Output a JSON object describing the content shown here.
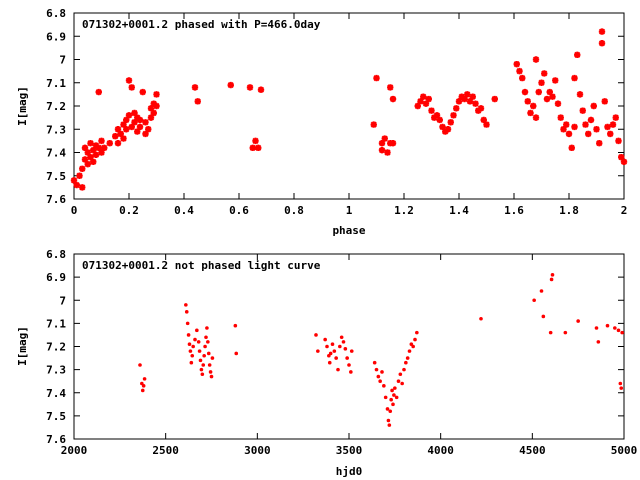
{
  "chart_data": [
    {
      "type": "scatter",
      "title": "071302+0001.2 phased with P=466.0day",
      "xlabel": "phase",
      "ylabel": "I[mag]",
      "xlim": [
        0,
        2
      ],
      "ylim": [
        7.6,
        6.8
      ],
      "y_inverted": true,
      "xticks": [
        0,
        0.2,
        0.4,
        0.6,
        0.8,
        1,
        1.2,
        1.4,
        1.6,
        1.8,
        2
      ],
      "xtick_labels": [
        "0",
        "0.2",
        "0.4",
        "0.6",
        "0.8",
        "1",
        "1.2",
        "1.4",
        "1.6",
        "1.8",
        "2"
      ],
      "yticks": [
        6.8,
        6.9,
        7,
        7.1,
        7.2,
        7.3,
        7.4,
        7.5,
        7.6
      ],
      "ytick_labels": [
        "6.8",
        "6.9",
        "7",
        "7.1",
        "7.2",
        "7.3",
        "7.4",
        "7.5",
        "7.6"
      ],
      "grid": false,
      "legend": "none",
      "marker_color": "#ff0000",
      "points": [
        [
          0.0,
          7.52
        ],
        [
          0.01,
          7.54
        ],
        [
          0.02,
          7.5
        ],
        [
          0.03,
          7.55
        ],
        [
          0.03,
          7.47
        ],
        [
          0.04,
          7.43
        ],
        [
          0.04,
          7.38
        ],
        [
          0.05,
          7.45
        ],
        [
          0.05,
          7.4
        ],
        [
          0.06,
          7.36
        ],
        [
          0.06,
          7.42
        ],
        [
          0.07,
          7.39
        ],
        [
          0.07,
          7.44
        ],
        [
          0.08,
          7.37
        ],
        [
          0.08,
          7.41
        ],
        [
          0.09,
          7.38
        ],
        [
          0.09,
          7.14
        ],
        [
          0.1,
          7.4
        ],
        [
          0.1,
          7.35
        ],
        [
          0.11,
          7.38
        ],
        [
          0.13,
          7.36
        ],
        [
          0.15,
          7.33
        ],
        [
          0.16,
          7.3
        ],
        [
          0.16,
          7.36
        ],
        [
          0.17,
          7.32
        ],
        [
          0.18,
          7.28
        ],
        [
          0.18,
          7.34
        ],
        [
          0.19,
          7.26
        ],
        [
          0.19,
          7.3
        ],
        [
          0.2,
          7.24
        ],
        [
          0.2,
          7.09
        ],
        [
          0.21,
          7.29
        ],
        [
          0.21,
          7.12
        ],
        [
          0.22,
          7.27
        ],
        [
          0.22,
          7.23
        ],
        [
          0.23,
          7.31
        ],
        [
          0.23,
          7.25
        ],
        [
          0.24,
          7.29
        ],
        [
          0.24,
          7.26
        ],
        [
          0.25,
          7.14
        ],
        [
          0.26,
          7.32
        ],
        [
          0.26,
          7.27
        ],
        [
          0.27,
          7.3
        ],
        [
          0.28,
          7.25
        ],
        [
          0.28,
          7.21
        ],
        [
          0.29,
          7.19
        ],
        [
          0.29,
          7.23
        ],
        [
          0.3,
          7.15
        ],
        [
          0.3,
          7.2
        ],
        [
          0.44,
          7.12
        ],
        [
          0.45,
          7.18
        ],
        [
          0.57,
          7.11
        ],
        [
          0.64,
          7.12
        ],
        [
          0.65,
          7.38
        ],
        [
          0.66,
          7.35
        ],
        [
          0.67,
          7.38
        ],
        [
          0.68,
          7.13
        ],
        [
          1.09,
          7.28
        ],
        [
          1.1,
          7.08
        ],
        [
          1.12,
          7.36
        ],
        [
          1.12,
          7.39
        ],
        [
          1.13,
          7.34
        ],
        [
          1.14,
          7.4
        ],
        [
          1.15,
          7.36
        ],
        [
          1.15,
          7.12
        ],
        [
          1.16,
          7.17
        ],
        [
          1.16,
          7.36
        ],
        [
          1.25,
          7.2
        ],
        [
          1.26,
          7.18
        ],
        [
          1.27,
          7.16
        ],
        [
          1.28,
          7.19
        ],
        [
          1.29,
          7.17
        ],
        [
          1.3,
          7.22
        ],
        [
          1.31,
          7.25
        ],
        [
          1.32,
          7.24
        ],
        [
          1.33,
          7.26
        ],
        [
          1.34,
          7.29
        ],
        [
          1.35,
          7.31
        ],
        [
          1.36,
          7.3
        ],
        [
          1.37,
          7.27
        ],
        [
          1.38,
          7.24
        ],
        [
          1.39,
          7.21
        ],
        [
          1.4,
          7.18
        ],
        [
          1.41,
          7.16
        ],
        [
          1.42,
          7.17
        ],
        [
          1.43,
          7.15
        ],
        [
          1.44,
          7.18
        ],
        [
          1.45,
          7.16
        ],
        [
          1.46,
          7.19
        ],
        [
          1.47,
          7.22
        ],
        [
          1.48,
          7.21
        ],
        [
          1.49,
          7.26
        ],
        [
          1.5,
          7.28
        ],
        [
          1.53,
          7.17
        ],
        [
          1.61,
          7.02
        ],
        [
          1.62,
          7.05
        ],
        [
          1.63,
          7.08
        ],
        [
          1.64,
          7.14
        ],
        [
          1.65,
          7.18
        ],
        [
          1.66,
          7.23
        ],
        [
          1.67,
          7.2
        ],
        [
          1.68,
          7.25
        ],
        [
          1.68,
          7.0
        ],
        [
          1.69,
          7.14
        ],
        [
          1.7,
          7.1
        ],
        [
          1.71,
          7.06
        ],
        [
          1.72,
          7.17
        ],
        [
          1.73,
          7.14
        ],
        [
          1.74,
          7.16
        ],
        [
          1.75,
          7.09
        ],
        [
          1.76,
          7.19
        ],
        [
          1.77,
          7.25
        ],
        [
          1.78,
          7.3
        ],
        [
          1.79,
          7.28
        ],
        [
          1.8,
          7.32
        ],
        [
          1.81,
          7.38
        ],
        [
          1.82,
          7.29
        ],
        [
          1.82,
          7.08
        ],
        [
          1.83,
          6.98
        ],
        [
          1.84,
          7.15
        ],
        [
          1.85,
          7.22
        ],
        [
          1.86,
          7.28
        ],
        [
          1.87,
          7.32
        ],
        [
          1.88,
          7.26
        ],
        [
          1.89,
          7.2
        ],
        [
          1.9,
          7.3
        ],
        [
          1.91,
          7.36
        ],
        [
          1.92,
          6.88
        ],
        [
          1.92,
          6.93
        ],
        [
          1.93,
          7.18
        ],
        [
          1.94,
          7.29
        ],
        [
          1.95,
          7.32
        ],
        [
          1.96,
          7.28
        ],
        [
          1.97,
          7.25
        ],
        [
          1.98,
          7.35
        ],
        [
          1.99,
          7.42
        ],
        [
          2.0,
          7.44
        ]
      ]
    },
    {
      "type": "scatter",
      "title": "071302+0001.2 not phased light curve",
      "xlabel": "hjd0",
      "ylabel": "I[mag]",
      "xlim": [
        2000,
        5000
      ],
      "ylim": [
        7.6,
        6.8
      ],
      "y_inverted": true,
      "xticks": [
        2000,
        2500,
        3000,
        3500,
        4000,
        4500,
        5000
      ],
      "xtick_labels": [
        "2000",
        "2500",
        "3000",
        "3500",
        "4000",
        "4500",
        "5000"
      ],
      "yticks": [
        6.8,
        6.9,
        7,
        7.1,
        7.2,
        7.3,
        7.4,
        7.5,
        7.6
      ],
      "ytick_labels": [
        "6.8",
        "6.9",
        "7",
        "7.1",
        "7.2",
        "7.3",
        "7.4",
        "7.5",
        "7.6"
      ],
      "grid": false,
      "legend": "none",
      "marker_color": "#ff0000",
      "points": [
        [
          2360,
          7.28
        ],
        [
          2370,
          7.36
        ],
        [
          2375,
          7.39
        ],
        [
          2380,
          7.37
        ],
        [
          2385,
          7.34
        ],
        [
          2610,
          7.02
        ],
        [
          2615,
          7.05
        ],
        [
          2620,
          7.1
        ],
        [
          2625,
          7.15
        ],
        [
          2630,
          7.19
        ],
        [
          2635,
          7.22
        ],
        [
          2640,
          7.27
        ],
        [
          2645,
          7.24
        ],
        [
          2650,
          7.2
        ],
        [
          2660,
          7.17
        ],
        [
          2670,
          7.13
        ],
        [
          2680,
          7.18
        ],
        [
          2685,
          7.22
        ],
        [
          2690,
          7.26
        ],
        [
          2695,
          7.3
        ],
        [
          2700,
          7.32
        ],
        [
          2705,
          7.28
        ],
        [
          2710,
          7.24
        ],
        [
          2715,
          7.2
        ],
        [
          2720,
          7.16
        ],
        [
          2725,
          7.12
        ],
        [
          2730,
          7.18
        ],
        [
          2735,
          7.23
        ],
        [
          2740,
          7.28
        ],
        [
          2745,
          7.31
        ],
        [
          2750,
          7.33
        ],
        [
          2755,
          7.25
        ],
        [
          2880,
          7.11
        ],
        [
          2885,
          7.23
        ],
        [
          3320,
          7.15
        ],
        [
          3330,
          7.22
        ],
        [
          3370,
          7.17
        ],
        [
          3380,
          7.2
        ],
        [
          3390,
          7.24
        ],
        [
          3395,
          7.27
        ],
        [
          3400,
          7.23
        ],
        [
          3410,
          7.19
        ],
        [
          3420,
          7.22
        ],
        [
          3430,
          7.25
        ],
        [
          3440,
          7.3
        ],
        [
          3450,
          7.2
        ],
        [
          3460,
          7.16
        ],
        [
          3470,
          7.18
        ],
        [
          3480,
          7.21
        ],
        [
          3490,
          7.25
        ],
        [
          3500,
          7.28
        ],
        [
          3510,
          7.31
        ],
        [
          3515,
          7.22
        ],
        [
          3640,
          7.27
        ],
        [
          3650,
          7.3
        ],
        [
          3660,
          7.33
        ],
        [
          3670,
          7.35
        ],
        [
          3680,
          7.31
        ],
        [
          3690,
          7.37
        ],
        [
          3700,
          7.42
        ],
        [
          3710,
          7.47
        ],
        [
          3715,
          7.52
        ],
        [
          3720,
          7.54
        ],
        [
          3725,
          7.48
        ],
        [
          3730,
          7.43
        ],
        [
          3735,
          7.39
        ],
        [
          3740,
          7.45
        ],
        [
          3745,
          7.41
        ],
        [
          3750,
          7.38
        ],
        [
          3760,
          7.42
        ],
        [
          3770,
          7.35
        ],
        [
          3780,
          7.32
        ],
        [
          3790,
          7.36
        ],
        [
          3800,
          7.3
        ],
        [
          3810,
          7.27
        ],
        [
          3820,
          7.25
        ],
        [
          3830,
          7.22
        ],
        [
          3840,
          7.19
        ],
        [
          3850,
          7.2
        ],
        [
          3860,
          7.17
        ],
        [
          3870,
          7.14
        ],
        [
          4220,
          7.08
        ],
        [
          4510,
          7.0
        ],
        [
          4550,
          6.96
        ],
        [
          4560,
          7.07
        ],
        [
          4600,
          7.14
        ],
        [
          4605,
          6.91
        ],
        [
          4610,
          6.89
        ],
        [
          4680,
          7.14
        ],
        [
          4750,
          7.09
        ],
        [
          4850,
          7.12
        ],
        [
          4860,
          7.18
        ],
        [
          4910,
          7.11
        ],
        [
          4950,
          7.12
        ],
        [
          4970,
          7.13
        ],
        [
          4980,
          7.36
        ],
        [
          4985,
          7.38
        ],
        [
          4990,
          7.14
        ]
      ]
    }
  ]
}
